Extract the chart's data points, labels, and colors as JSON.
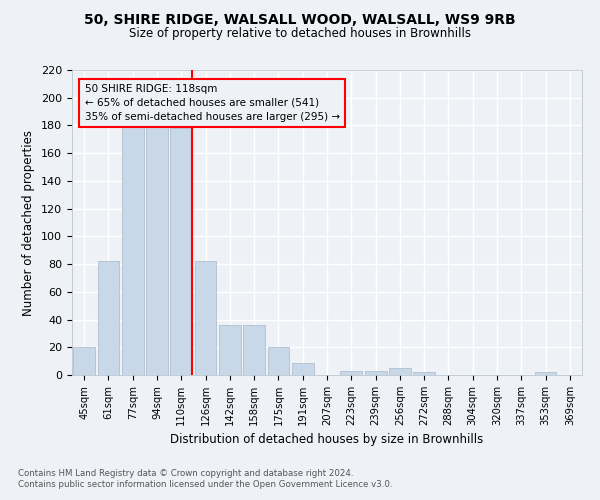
{
  "title1": "50, SHIRE RIDGE, WALSALL WOOD, WALSALL, WS9 9RB",
  "title2": "Size of property relative to detached houses in Brownhills",
  "xlabel": "Distribution of detached houses by size in Brownhills",
  "ylabel": "Number of detached properties",
  "categories": [
    "45sqm",
    "61sqm",
    "77sqm",
    "94sqm",
    "110sqm",
    "126sqm",
    "142sqm",
    "158sqm",
    "175sqm",
    "191sqm",
    "207sqm",
    "223sqm",
    "239sqm",
    "256sqm",
    "272sqm",
    "288sqm",
    "304sqm",
    "320sqm",
    "337sqm",
    "353sqm",
    "369sqm"
  ],
  "values": [
    20,
    82,
    183,
    181,
    178,
    82,
    36,
    36,
    20,
    9,
    0,
    3,
    3,
    5,
    2,
    0,
    0,
    0,
    0,
    2,
    0
  ],
  "bar_color": "#c8d8e8",
  "bar_edge_color": "#a8b8c8",
  "annotation_title": "50 SHIRE RIDGE: 118sqm",
  "annotation_line1": "← 65% of detached houses are smaller (541)",
  "annotation_line2": "35% of semi-detached houses are larger (295) →",
  "ylim": [
    0,
    220
  ],
  "yticks": [
    0,
    20,
    40,
    60,
    80,
    100,
    120,
    140,
    160,
    180,
    200,
    220
  ],
  "footer1": "Contains HM Land Registry data © Crown copyright and database right 2024.",
  "footer2": "Contains public sector information licensed under the Open Government Licence v3.0.",
  "background_color": "#eef2f7",
  "grid_color": "#ffffff"
}
